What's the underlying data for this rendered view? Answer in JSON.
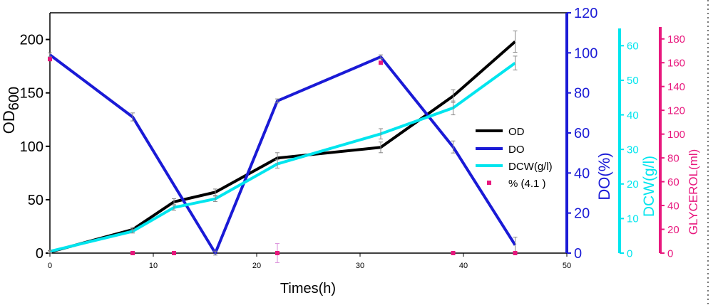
{
  "chart_data": {
    "type": "line",
    "xlabel": "Times(h)",
    "xlim": [
      0,
      50
    ],
    "xticks": [
      0,
      10,
      20,
      30,
      40,
      50
    ],
    "axes": {
      "od": {
        "label": "OD600",
        "label_main": "OD",
        "label_sub": "600",
        "range": [
          0,
          225
        ],
        "ticks": [
          0,
          50,
          100,
          150,
          200
        ],
        "color": "#000000"
      },
      "do": {
        "label": "DO(%)",
        "range": [
          0,
          120
        ],
        "ticks": [
          0,
          20,
          40,
          60,
          80,
          100,
          120
        ],
        "color": "#1a1ad6"
      },
      "dcw": {
        "label": "DCW(g/l)",
        "range": [
          0,
          65
        ],
        "ticks": [
          0,
          10,
          20,
          30,
          40,
          50,
          60
        ],
        "color": "#00e5ee"
      },
      "glycerol": {
        "label": "GLYCEROL(ml)",
        "range": [
          0,
          190
        ],
        "ticks": [
          0,
          20,
          40,
          60,
          80,
          100,
          120,
          140,
          160,
          180
        ],
        "color": "#e8177d"
      }
    },
    "series": [
      {
        "name": "OD",
        "axis": "od",
        "color": "#000000",
        "x": [
          0,
          8,
          12,
          16,
          22,
          32,
          39,
          45
        ],
        "y": [
          1,
          22,
          48,
          57,
          89,
          99,
          147,
          198
        ],
        "err": [
          1,
          2,
          3,
          3,
          5,
          5,
          6,
          10
        ]
      },
      {
        "name": "DO",
        "axis": "do",
        "color": "#1a1ad6",
        "x": [
          0,
          8,
          16,
          22,
          32,
          39,
          45
        ],
        "y": [
          99,
          68,
          0,
          76,
          98,
          53,
          4
        ],
        "err": [
          1,
          2,
          1,
          1,
          1,
          3,
          4
        ]
      },
      {
        "name": "DCW(g/l)",
        "axis": "dcw",
        "color": "#00e5ee",
        "x": [
          0,
          8,
          12,
          16,
          22,
          32,
          39,
          45
        ],
        "y": [
          0.5,
          6.3,
          13.2,
          15.7,
          25.8,
          34.5,
          42,
          55
        ],
        "err": [
          0.3,
          0.5,
          0.8,
          0.8,
          1.2,
          1.5,
          2,
          2
        ]
      },
      {
        "name": "% (4.1 )",
        "axis": "glycerol",
        "color": "#e8177d",
        "x": [
          0,
          8,
          12,
          22,
          32,
          39,
          45
        ],
        "y": [
          163,
          0,
          0,
          0,
          160,
          0,
          0
        ],
        "err": [
          0,
          0,
          0,
          8,
          0,
          0,
          0
        ]
      }
    ],
    "legend_position": "center-right"
  }
}
